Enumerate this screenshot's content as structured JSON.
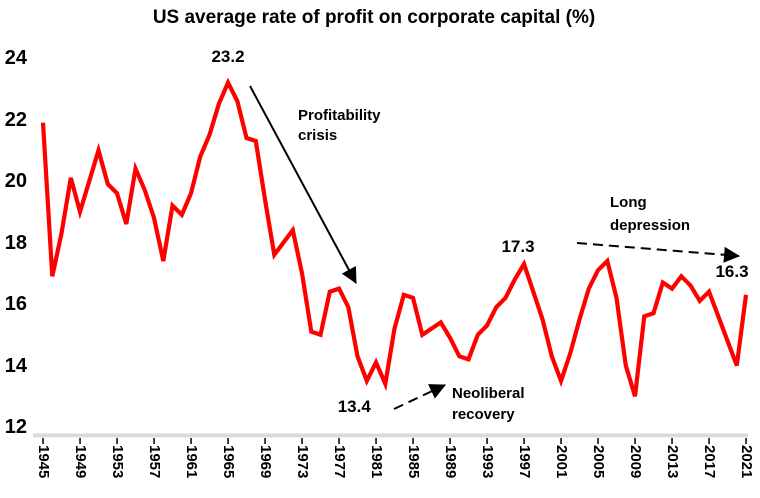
{
  "chart_data": {
    "type": "line",
    "title": "US average rate of profit on corporate capital (%)",
    "xlabel": "",
    "ylabel": "",
    "x_range": [
      1945,
      2021
    ],
    "ylim": [
      12,
      24.5
    ],
    "yticks": [
      12,
      14,
      16,
      18,
      20,
      22,
      24
    ],
    "xtick_years": [
      1945,
      1949,
      1953,
      1957,
      1961,
      1965,
      1969,
      1973,
      1977,
      1981,
      1985,
      1989,
      1993,
      1997,
      2001,
      2005,
      2009,
      2013,
      2017,
      2021
    ],
    "grid": false,
    "legend": "none",
    "line_color": "#ff0000",
    "axis_line_color": "#d9d9d9",
    "text_color": "#000000",
    "series": [
      {
        "name": "US average rate of profit on corporate capital",
        "values": [
          21.9,
          16.9,
          18.3,
          20.1,
          19.0,
          20.0,
          21.0,
          19.9,
          19.6,
          18.6,
          20.4,
          19.7,
          18.8,
          17.4,
          19.2,
          18.9,
          19.6,
          20.8,
          21.5,
          22.5,
          23.2,
          22.6,
          21.4,
          21.3,
          19.4,
          17.6,
          18.0,
          18.4,
          17.0,
          15.1,
          15.0,
          16.4,
          16.5,
          15.9,
          14.3,
          13.5,
          14.1,
          13.4,
          15.2,
          16.3,
          16.2,
          15.0,
          15.2,
          15.4,
          14.9,
          14.3,
          14.2,
          15.0,
          15.3,
          15.9,
          16.2,
          16.8,
          17.3,
          16.4,
          15.5,
          14.3,
          13.5,
          14.4,
          15.5,
          16.5,
          17.1,
          17.4,
          16.2,
          14.0,
          13.0,
          15.6,
          15.7,
          16.7,
          16.5,
          16.9,
          16.6,
          16.1,
          16.4,
          15.6,
          14.8,
          14.0,
          16.3
        ]
      }
    ],
    "point_labels": [
      {
        "text": "23.2",
        "year": 1965,
        "value": 23.2,
        "placement": "above"
      },
      {
        "text": "17.3",
        "year": 1997,
        "value": 17.3,
        "placement": "above"
      },
      {
        "text": "13.4",
        "year": 1982,
        "value": 13.4,
        "placement": "below-left"
      },
      {
        "text": "16.3",
        "year": 2021,
        "value": 16.3,
        "placement": "above-left"
      }
    ],
    "annotations": [
      {
        "id": "profitability-crisis",
        "line1": "Profitability",
        "line2": "crisis",
        "arrow": "solid"
      },
      {
        "id": "neoliberal-recovery",
        "line1": "Neoliberal",
        "line2": "recovery",
        "arrow": "dashed"
      },
      {
        "id": "long-depression",
        "line1": "Long",
        "line2": "depression",
        "arrow": "dashed"
      }
    ]
  }
}
